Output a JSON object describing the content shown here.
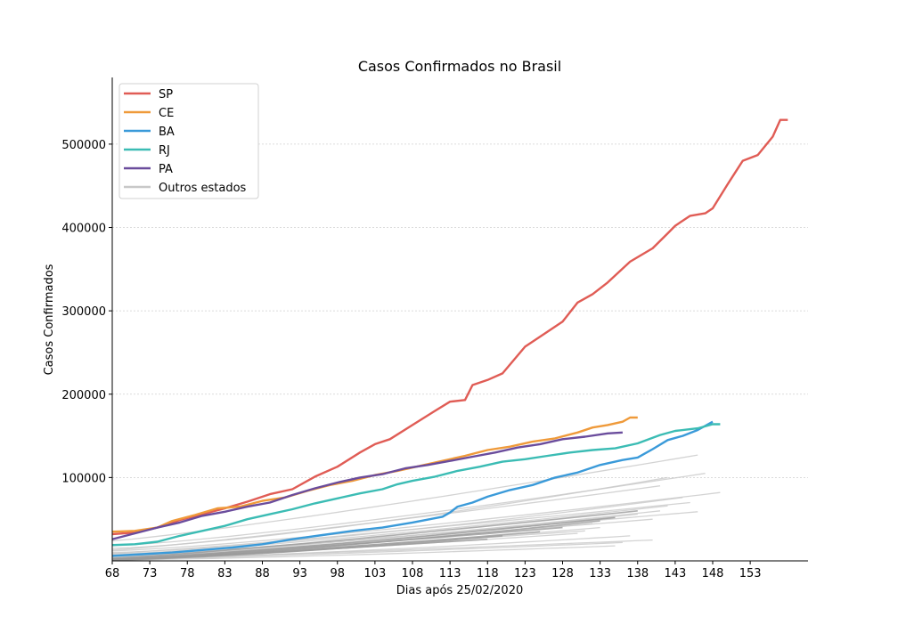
{
  "chart_data": {
    "type": "line",
    "title": "Casos Confirmados no Brasil",
    "xlabel": "Dias após 25/02/2020",
    "ylabel": "Casos Confirmados",
    "xlim": [
      68,
      160.7
    ],
    "ylim": [
      0,
      580000
    ],
    "xticks": [
      68,
      73,
      78,
      83,
      88,
      93,
      98,
      103,
      108,
      113,
      118,
      123,
      128,
      133,
      138,
      143,
      148,
      153
    ],
    "yticks": [
      100000,
      200000,
      300000,
      400000,
      500000
    ],
    "grid": "horizontal",
    "legend_position": "upper-left",
    "legend_entries": [
      "SP",
      "CE",
      "BA",
      "RJ",
      "PA",
      "Outros estados"
    ],
    "highlight_series": [
      {
        "name": "SP",
        "color": "#e05c55",
        "points": [
          [
            68,
            32000
          ],
          [
            71,
            34000
          ],
          [
            74,
            40000
          ],
          [
            77,
            49000
          ],
          [
            80,
            56000
          ],
          [
            83,
            63000
          ],
          [
            86,
            71000
          ],
          [
            89,
            80000
          ],
          [
            92,
            86000
          ],
          [
            95,
            101000
          ],
          [
            98,
            113000
          ],
          [
            101,
            130000
          ],
          [
            103,
            140000
          ],
          [
            105,
            146000
          ],
          [
            108,
            163000
          ],
          [
            111,
            180000
          ],
          [
            113,
            191000
          ],
          [
            115,
            193000
          ],
          [
            116,
            211000
          ],
          [
            118,
            217000
          ],
          [
            120,
            225000
          ],
          [
            123,
            257000
          ],
          [
            126,
            275000
          ],
          [
            128,
            287000
          ],
          [
            130,
            310000
          ],
          [
            132,
            320000
          ],
          [
            134,
            334000
          ],
          [
            137,
            359000
          ],
          [
            140,
            375000
          ],
          [
            142,
            393000
          ],
          [
            143,
            402000
          ],
          [
            145,
            414000
          ],
          [
            147,
            417000
          ],
          [
            148,
            423000
          ],
          [
            150,
            452000
          ],
          [
            151,
            466000
          ],
          [
            152,
            480000
          ],
          [
            154,
            487000
          ],
          [
            156,
            509000
          ],
          [
            157,
            529000
          ],
          [
            158,
            529000
          ]
        ]
      },
      {
        "name": "CE",
        "color": "#ef9a3a",
        "points": [
          [
            68,
            35000
          ],
          [
            71,
            36000
          ],
          [
            74,
            40000
          ],
          [
            76,
            48000
          ],
          [
            79,
            55000
          ],
          [
            82,
            63000
          ],
          [
            85,
            65000
          ],
          [
            88,
            72000
          ],
          [
            91,
            76000
          ],
          [
            94,
            84000
          ],
          [
            97,
            91000
          ],
          [
            100,
            96000
          ],
          [
            103,
            103000
          ],
          [
            106,
            108000
          ],
          [
            109,
            114000
          ],
          [
            112,
            120000
          ],
          [
            115,
            126000
          ],
          [
            118,
            133000
          ],
          [
            121,
            137000
          ],
          [
            124,
            143000
          ],
          [
            127,
            147000
          ],
          [
            130,
            154000
          ],
          [
            132,
            160000
          ],
          [
            134,
            163000
          ],
          [
            136,
            167000
          ],
          [
            137,
            172000
          ],
          [
            138,
            172000
          ]
        ]
      },
      {
        "name": "BA",
        "color": "#3a9ad9",
        "points": [
          [
            68,
            6000
          ],
          [
            72,
            8000
          ],
          [
            76,
            10000
          ],
          [
            80,
            13000
          ],
          [
            84,
            16000
          ],
          [
            88,
            20000
          ],
          [
            92,
            26000
          ],
          [
            96,
            31000
          ],
          [
            100,
            36000
          ],
          [
            104,
            40000
          ],
          [
            108,
            46000
          ],
          [
            112,
            53000
          ],
          [
            113,
            58000
          ],
          [
            114,
            65000
          ],
          [
            116,
            70000
          ],
          [
            118,
            77000
          ],
          [
            121,
            85000
          ],
          [
            124,
            91000
          ],
          [
            127,
            100000
          ],
          [
            130,
            106000
          ],
          [
            133,
            115000
          ],
          [
            136,
            121000
          ],
          [
            138,
            124000
          ],
          [
            140,
            134000
          ],
          [
            142,
            145000
          ],
          [
            144,
            150000
          ],
          [
            146,
            157000
          ],
          [
            148,
            167000
          ]
        ]
      },
      {
        "name": "RJ",
        "color": "#3bbcb4",
        "points": [
          [
            68,
            19000
          ],
          [
            71,
            20000
          ],
          [
            74,
            23000
          ],
          [
            77,
            30000
          ],
          [
            80,
            36000
          ],
          [
            83,
            42000
          ],
          [
            86,
            50000
          ],
          [
            89,
            56000
          ],
          [
            92,
            62000
          ],
          [
            95,
            69000
          ],
          [
            98,
            75000
          ],
          [
            101,
            81000
          ],
          [
            104,
            86000
          ],
          [
            106,
            92000
          ],
          [
            108,
            96000
          ],
          [
            111,
            101000
          ],
          [
            114,
            108000
          ],
          [
            117,
            113000
          ],
          [
            120,
            119000
          ],
          [
            123,
            122000
          ],
          [
            126,
            126000
          ],
          [
            129,
            130000
          ],
          [
            132,
            133000
          ],
          [
            135,
            135000
          ],
          [
            138,
            141000
          ],
          [
            141,
            151000
          ],
          [
            143,
            156000
          ],
          [
            146,
            159000
          ],
          [
            148,
            164000
          ],
          [
            149,
            164000
          ]
        ]
      },
      {
        "name": "PA",
        "color": "#6a4c9c",
        "points": [
          [
            68,
            26000
          ],
          [
            71,
            33000
          ],
          [
            74,
            40000
          ],
          [
            77,
            46000
          ],
          [
            80,
            54000
          ],
          [
            83,
            59000
          ],
          [
            86,
            65000
          ],
          [
            89,
            70000
          ],
          [
            92,
            79000
          ],
          [
            95,
            87000
          ],
          [
            98,
            94000
          ],
          [
            101,
            100000
          ],
          [
            104,
            104000
          ],
          [
            107,
            111000
          ],
          [
            110,
            115000
          ],
          [
            113,
            120000
          ],
          [
            116,
            125000
          ],
          [
            119,
            130000
          ],
          [
            122,
            136000
          ],
          [
            125,
            140000
          ],
          [
            128,
            146000
          ],
          [
            131,
            149000
          ],
          [
            134,
            153000
          ],
          [
            136,
            154000
          ]
        ]
      }
    ],
    "other_series_name": "Outros estados",
    "other_series_color": "#c8c8c8",
    "other_states": [
      [
        [
          68,
          24000
        ],
        [
          146,
          127000
        ]
      ],
      [
        [
          68,
          18000
        ],
        [
          147,
          105000
        ]
      ],
      [
        [
          68,
          15000
        ],
        [
          142,
          100000
        ]
      ],
      [
        [
          68,
          13000
        ],
        [
          141,
          90000
        ]
      ],
      [
        [
          68,
          12000
        ],
        [
          149,
          82000
        ]
      ],
      [
        [
          68,
          10000
        ],
        [
          144,
          76000
        ]
      ],
      [
        [
          68,
          9000
        ],
        [
          145,
          70000
        ]
      ],
      [
        [
          68,
          8000
        ],
        [
          142,
          66000
        ]
      ],
      [
        [
          68,
          7000
        ],
        [
          141,
          60000
        ]
      ],
      [
        [
          68,
          6000
        ],
        [
          146,
          59000
        ]
      ],
      [
        [
          68,
          5000
        ],
        [
          138,
          56000
        ]
      ],
      [
        [
          68,
          4500
        ],
        [
          135,
          52000
        ]
      ],
      [
        [
          68,
          4000
        ],
        [
          140,
          50000
        ]
      ],
      [
        [
          68,
          3500
        ],
        [
          132,
          45000
        ]
      ],
      [
        [
          68,
          3000
        ],
        [
          133,
          40000
        ]
      ],
      [
        [
          68,
          2800
        ],
        [
          131,
          36000
        ]
      ],
      [
        [
          68,
          2500
        ],
        [
          130,
          33000
        ]
      ],
      [
        [
          68,
          2000
        ],
        [
          137,
          30000
        ]
      ],
      [
        [
          68,
          1800
        ],
        [
          140,
          25000
        ]
      ],
      [
        [
          68,
          1500
        ],
        [
          136,
          22000
        ]
      ],
      [
        [
          68,
          1000
        ],
        [
          135,
          18000
        ]
      ]
    ],
    "other_states_gray": [
      [
        [
          68,
          3000
        ],
        [
          138,
          60000
        ]
      ],
      [
        [
          68,
          2500
        ],
        [
          135,
          52000
        ]
      ],
      [
        [
          68,
          2000
        ],
        [
          133,
          48000
        ]
      ],
      [
        [
          68,
          1500
        ],
        [
          128,
          40000
        ]
      ],
      [
        [
          68,
          1200
        ],
        [
          125,
          35000
        ]
      ],
      [
        [
          68,
          1000
        ],
        [
          120,
          30000
        ]
      ],
      [
        [
          68,
          900
        ],
        [
          118,
          26000
        ]
      ]
    ]
  }
}
